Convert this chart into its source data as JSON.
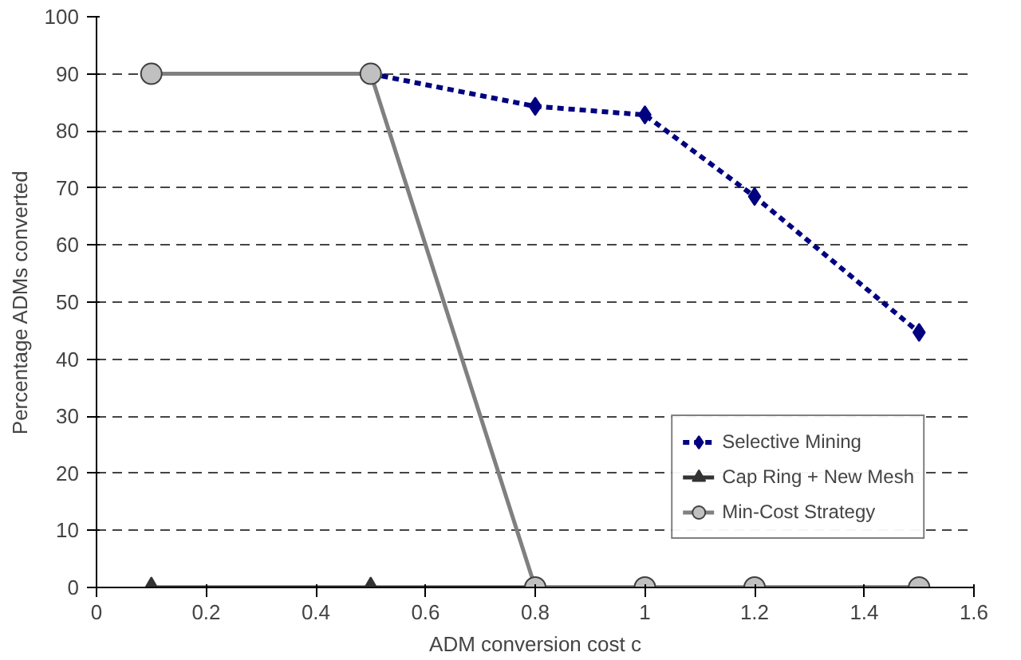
{
  "chart_data": {
    "type": "line",
    "xlabel": "ADM conversion cost c",
    "ylabel": "Percentage ADMs converted",
    "xlim": [
      0,
      1.6
    ],
    "xticks": [
      0,
      0.2,
      0.4,
      0.6,
      0.8,
      1,
      1.2,
      1.4,
      1.6
    ],
    "ylim": [
      0,
      100
    ],
    "yticks": [
      0,
      10,
      20,
      30,
      40,
      50,
      60,
      70,
      80,
      90,
      100
    ],
    "grid": "y",
    "legend": "bottom right",
    "series": [
      {
        "name": "Selective Mining",
        "color": "#000080",
        "x": [
          0.5,
          0.8,
          1,
          1.2,
          1.5
        ],
        "values": [
          90,
          84.3,
          82.8,
          68.5,
          44.7
        ],
        "marker": "diamond",
        "line_style": "dashed"
      },
      {
        "name": "Cap Ring + New Mesh",
        "color": "#333333",
        "x": [
          0.1,
          0.5,
          0.8,
          1,
          1.2,
          1.5
        ],
        "values": [
          0,
          0,
          0,
          0,
          0,
          0
        ],
        "marker": "triangle",
        "line_style": "solid"
      },
      {
        "name": "Min-Cost Strategy",
        "color": "#808080",
        "x": [
          0.1,
          0.5,
          0.8,
          1,
          1.2,
          1.5
        ],
        "values": [
          90,
          90,
          0,
          0,
          0,
          0
        ],
        "marker": "circle",
        "line_style": "solid"
      }
    ]
  }
}
